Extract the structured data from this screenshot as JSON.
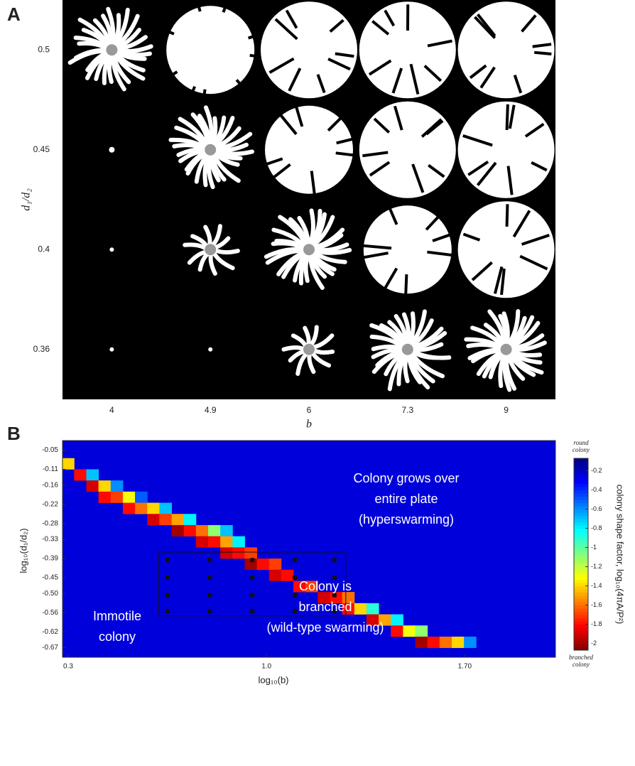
{
  "chart_data": [
    {
      "type": "grid",
      "panel_label": "A",
      "x_label": "b",
      "y_label": "d₁/d₂",
      "categories": [
        4,
        4.9,
        6,
        7.3,
        9
      ],
      "row_categories": [
        0.5,
        0.45,
        0.4,
        0.36
      ]
    },
    {
      "type": "heatmap",
      "panel_label": "B",
      "x_label": "log₁₀(b)",
      "y_label": "log₁₀(d₁/d₂)",
      "xlim": [
        0.28,
        2.02
      ],
      "ylim": [
        -0.7,
        -0.02
      ],
      "xticks": [
        0.3,
        {
          "value": 1.0,
          "label": "1.0"
        },
        {
          "value": 1.7,
          "label": "1.70"
        }
      ],
      "yticks": [
        -0.05,
        -0.11,
        -0.16,
        -0.22,
        -0.28,
        -0.33,
        -0.39,
        -0.45,
        {
          "value": -0.5,
          "label": "-0.50"
        },
        -0.56,
        -0.62,
        -0.67
      ],
      "field_value": -0.25,
      "cells": [
        {
          "x": 0.3,
          "y": -0.093,
          "value": -1.4
        },
        {
          "x": 0.343,
          "y": -0.128,
          "value": -1.8
        },
        {
          "x": 0.386,
          "y": -0.128,
          "value": -0.7
        },
        {
          "x": 0.386,
          "y": -0.163,
          "value": -1.9
        },
        {
          "x": 0.429,
          "y": -0.163,
          "value": -1.4
        },
        {
          "x": 0.472,
          "y": -0.163,
          "value": -0.6
        },
        {
          "x": 0.429,
          "y": -0.198,
          "value": -1.8
        },
        {
          "x": 0.472,
          "y": -0.198,
          "value": -1.7
        },
        {
          "x": 0.515,
          "y": -0.198,
          "value": -1.3
        },
        {
          "x": 0.558,
          "y": -0.198,
          "value": -0.5
        },
        {
          "x": 0.515,
          "y": -0.233,
          "value": -1.8
        },
        {
          "x": 0.558,
          "y": -0.233,
          "value": -1.6
        },
        {
          "x": 0.601,
          "y": -0.233,
          "value": -1.4
        },
        {
          "x": 0.644,
          "y": -0.233,
          "value": -0.7
        },
        {
          "x": 0.601,
          "y": -0.268,
          "value": -1.9
        },
        {
          "x": 0.644,
          "y": -0.268,
          "value": -1.7
        },
        {
          "x": 0.687,
          "y": -0.268,
          "value": -1.5
        },
        {
          "x": 0.73,
          "y": -0.268,
          "value": -0.8
        },
        {
          "x": 0.687,
          "y": -0.303,
          "value": -2.0
        },
        {
          "x": 0.73,
          "y": -0.303,
          "value": -1.8
        },
        {
          "x": 0.773,
          "y": -0.303,
          "value": -1.6
        },
        {
          "x": 0.816,
          "y": -0.303,
          "value": -1.1
        },
        {
          "x": 0.859,
          "y": -0.303,
          "value": -0.7
        },
        {
          "x": 0.773,
          "y": -0.338,
          "value": -1.9
        },
        {
          "x": 0.816,
          "y": -0.338,
          "value": -1.8
        },
        {
          "x": 0.859,
          "y": -0.338,
          "value": -1.5
        },
        {
          "x": 0.902,
          "y": -0.338,
          "value": -0.8
        },
        {
          "x": 0.859,
          "y": -0.373,
          "value": -1.9
        },
        {
          "x": 0.902,
          "y": -0.373,
          "value": -1.8
        },
        {
          "x": 0.945,
          "y": -0.373,
          "value": -1.7
        },
        {
          "x": 0.945,
          "y": -0.408,
          "value": -2.0
        },
        {
          "x": 0.988,
          "y": -0.408,
          "value": -1.8
        },
        {
          "x": 1.031,
          "y": -0.408,
          "value": -1.7
        },
        {
          "x": 1.031,
          "y": -0.443,
          "value": -1.9
        },
        {
          "x": 1.074,
          "y": -0.443,
          "value": -1.8
        },
        {
          "x": 1.117,
          "y": -0.478,
          "value": -1.8
        },
        {
          "x": 1.16,
          "y": -0.478,
          "value": -1.7
        },
        {
          "x": 1.203,
          "y": -0.513,
          "value": -1.9
        },
        {
          "x": 1.246,
          "y": -0.513,
          "value": -1.8
        },
        {
          "x": 1.289,
          "y": -0.513,
          "value": -1.6
        },
        {
          "x": 1.289,
          "y": -0.548,
          "value": -1.8
        },
        {
          "x": 1.332,
          "y": -0.548,
          "value": -1.4
        },
        {
          "x": 1.375,
          "y": -0.548,
          "value": -0.9
        },
        {
          "x": 1.375,
          "y": -0.583,
          "value": -1.9
        },
        {
          "x": 1.418,
          "y": -0.583,
          "value": -1.5
        },
        {
          "x": 1.461,
          "y": -0.583,
          "value": -0.8
        },
        {
          "x": 1.461,
          "y": -0.618,
          "value": -1.8
        },
        {
          "x": 1.504,
          "y": -0.618,
          "value": -1.3
        },
        {
          "x": 1.547,
          "y": -0.618,
          "value": -1.1
        },
        {
          "x": 1.547,
          "y": -0.653,
          "value": -2.0
        },
        {
          "x": 1.59,
          "y": -0.653,
          "value": -1.8
        },
        {
          "x": 1.633,
          "y": -0.653,
          "value": -1.6
        },
        {
          "x": 1.676,
          "y": -0.653,
          "value": -1.4
        },
        {
          "x": 1.719,
          "y": -0.653,
          "value": -0.6
        }
      ],
      "box": {
        "x": [
          0.62,
          1.28
        ],
        "y": [
          -0.37,
          -0.57
        ]
      },
      "markers": {
        "x": [
          0.65,
          0.8,
          0.95,
          1.1,
          1.24
        ],
        "y": [
          -0.395,
          -0.45,
          -0.505,
          -0.555
        ]
      },
      "annotations": [
        {
          "lines": [
            "Colony grows over",
            "entire plate",
            "(hyperswarming)"
          ]
        },
        {
          "lines": [
            "Colony is",
            "branched",
            "(wild-type swarming)"
          ]
        },
        {
          "lines": [
            "Immotile",
            "colony"
          ]
        }
      ],
      "colorbar": {
        "label": "colony shape factor, log₁₀(4πA/P²)",
        "top_label": [
          "round",
          "colony"
        ],
        "bottom_label": [
          "branched",
          "colony"
        ],
        "clim": [
          -2.07,
          -0.07
        ],
        "ticks": [
          -0.2,
          -0.4,
          -0.6,
          -0.8,
          -1,
          -1.2,
          -1.4,
          -1.6,
          -1.8,
          -2
        ]
      }
    }
  ]
}
